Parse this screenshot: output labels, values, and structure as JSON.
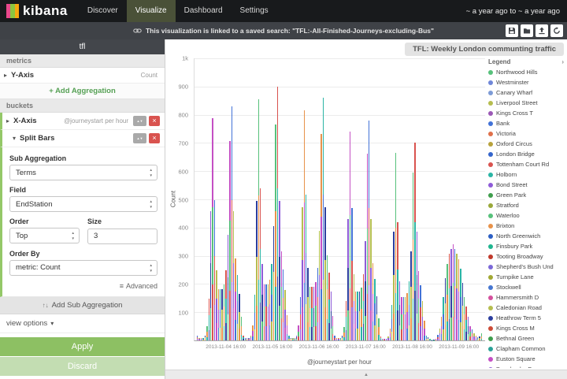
{
  "icons": {
    "caret_right": "▸",
    "caret_down": "▾",
    "close": "×",
    "arrows_up_down": "▲▼",
    "advanced": "≡",
    "sort": "↑↓",
    "chevron_right": "›",
    "collapse": "▲"
  },
  "topnav": {
    "brand": "kibana",
    "items": [
      {
        "label": "Discover"
      },
      {
        "label": "Visualize"
      },
      {
        "label": "Dashboard"
      },
      {
        "label": "Settings"
      }
    ],
    "time_range": "~ a year ago to ~ a year ago"
  },
  "toolbar": {
    "message": "This visualization is linked to a saved search: \"TFL:-All-Finished-Journeys-excluding-Bus\""
  },
  "sidebar": {
    "title": "tfl",
    "metrics_header": "metrics",
    "y_axis": {
      "label": "Y-Axis",
      "value": "Count"
    },
    "add_aggregation": "+ Add Aggregation",
    "buckets_header": "buckets",
    "x_axis": {
      "label": "X-Axis",
      "value": "@journeystart per hour"
    },
    "split_bars": {
      "label": "Split Bars"
    },
    "sub_aggregation": {
      "label": "Sub Aggregation",
      "value": "Terms"
    },
    "field": {
      "label": "Field",
      "value": "EndStation"
    },
    "order": {
      "label": "Order",
      "value": "Top"
    },
    "size": {
      "label": "Size",
      "value": "3"
    },
    "order_by": {
      "label": "Order By",
      "value": "metric: Count"
    },
    "advanced": "Advanced",
    "add_sub_aggregation": "Add Sub Aggregation",
    "view_options": "view options",
    "apply": "Apply",
    "discard": "Discard"
  },
  "chart_data": {
    "type": "bar",
    "title": "TFL: Weekly London communting traffic",
    "xlabel": "@journeystart per hour",
    "ylabel": "Count",
    "ylim": [
      0,
      1000
    ],
    "grid": true,
    "legend_position": "right",
    "y_ticks": [
      {
        "label": "1k",
        "value": 1000
      },
      {
        "label": "900",
        "value": 900
      },
      {
        "label": "800",
        "value": 800
      },
      {
        "label": "700",
        "value": 700
      },
      {
        "label": "600",
        "value": 600
      },
      {
        "label": "500",
        "value": 500
      },
      {
        "label": "400",
        "value": 400
      },
      {
        "label": "300",
        "value": 300
      },
      {
        "label": "200",
        "value": 200
      },
      {
        "label": "100",
        "value": 100
      }
    ],
    "x_ticks": [
      {
        "index": 16,
        "label": "2013-11-04 16:00"
      },
      {
        "index": 40,
        "label": "2013-11-05 16:00"
      },
      {
        "index": 64,
        "label": "2013-11-06 16:00"
      },
      {
        "index": 88,
        "label": "2013-11-07 16:00"
      },
      {
        "index": 112,
        "label": "2013-11-08 16:00"
      },
      {
        "index": 136,
        "label": "2013-11-09 16:00"
      }
    ],
    "values": [
      17,
      8,
      8,
      8,
      17,
      50,
      149,
      457,
      789,
      498,
      249,
      183,
      183,
      183,
      199,
      249,
      374,
      706,
      830,
      457,
      291,
      232,
      166,
      83,
      18,
      9,
      9,
      9,
      18,
      54,
      162,
      495,
      855,
      540,
      270,
      198,
      198,
      198,
      216,
      270,
      405,
      765,
      900,
      495,
      315,
      252,
      180,
      90,
      17,
      9,
      9,
      9,
      17,
      52,
      155,
      473,
      817,
      516,
      258,
      189,
      189,
      189,
      206,
      258,
      387,
      731,
      860,
      473,
      301,
      241,
      172,
      86,
      16,
      8,
      8,
      8,
      16,
      47,
      140,
      429,
      741,
      468,
      234,
      172,
      172,
      172,
      187,
      234,
      351,
      663,
      780,
      429,
      273,
      218,
      156,
      78,
      14,
      7,
      7,
      7,
      14,
      42,
      126,
      385,
      665,
      420,
      210,
      154,
      154,
      154,
      168,
      210,
      315,
      595,
      700,
      385,
      245,
      196,
      140,
      70,
      17,
      10,
      7,
      3,
      3,
      7,
      20,
      41,
      85,
      153,
      221,
      272,
      306,
      323,
      340,
      323,
      306,
      289,
      255,
      204,
      153,
      119,
      85,
      51,
      40,
      25,
      18,
      12,
      15,
      25
    ],
    "segment_ratios": [
      0.4,
      0.35,
      0.25
    ],
    "segment_palette": [
      "#4272d7",
      "#57c17b",
      "#b6bd4f",
      "#d9534f",
      "#e8924a",
      "#8e5bd8",
      "#2ab5a5",
      "#c44fc4",
      "#2c3e9e"
    ],
    "legend": {
      "title": "Legend",
      "items": [
        {
          "label": "Northwood Hills",
          "color": "#57c17b"
        },
        {
          "label": "Westminster",
          "color": "#6f87d8"
        },
        {
          "label": "Canary Wharf",
          "color": "#7d9bd6"
        },
        {
          "label": "Liverpool Street",
          "color": "#b6bd4f"
        },
        {
          "label": "Kings Cross T",
          "color": "#9b59b6"
        },
        {
          "label": "Bank",
          "color": "#4272d7"
        },
        {
          "label": "Victoria",
          "color": "#e0704a"
        },
        {
          "label": "Oxford Circus",
          "color": "#b8a23c"
        },
        {
          "label": "London Bridge",
          "color": "#3465cc"
        },
        {
          "label": "Tottenham Court Rd",
          "color": "#d9534f"
        },
        {
          "label": "Holborn",
          "color": "#2ab5a5"
        },
        {
          "label": "Bond Street",
          "color": "#8e5bd8"
        },
        {
          "label": "Green Park",
          "color": "#3f9e4d"
        },
        {
          "label": "Stratford",
          "color": "#9aa83a"
        },
        {
          "label": "Waterloo",
          "color": "#57c17b"
        },
        {
          "label": "Brixton",
          "color": "#e8924a"
        },
        {
          "label": "North Greenwich",
          "color": "#2c5fc4"
        },
        {
          "label": "Finsbury Park",
          "color": "#1fb58f"
        },
        {
          "label": "Tooting Broadway",
          "color": "#c0392b"
        },
        {
          "label": "Shepherd's Bush Und",
          "color": "#7b68d8"
        },
        {
          "label": "Turnpike Lane",
          "color": "#a2a832"
        },
        {
          "label": "Stockwell",
          "color": "#4676d0"
        },
        {
          "label": "Hammersmith D",
          "color": "#d4509d"
        },
        {
          "label": "Caledonian Road",
          "color": "#b5bd4f"
        },
        {
          "label": "Heathrow Term 5",
          "color": "#2c3e9e"
        },
        {
          "label": "Kings Cross M",
          "color": "#cc4b37"
        },
        {
          "label": "Bethnal Green",
          "color": "#3f9e4d"
        },
        {
          "label": "Clapham Common",
          "color": "#2aa198"
        },
        {
          "label": "Euston Square",
          "color": "#c44fc4"
        },
        {
          "label": "Bromley-by-Bow",
          "color": "#8e5bd8"
        }
      ]
    }
  }
}
